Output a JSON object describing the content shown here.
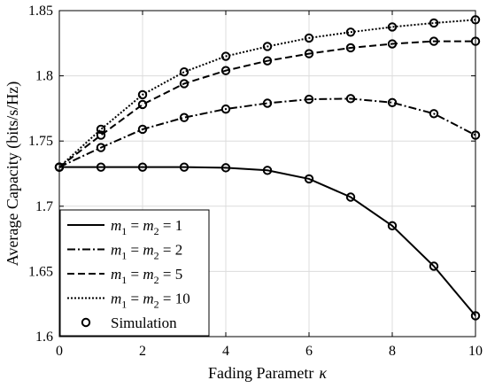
{
  "chart_data": {
    "type": "line",
    "title": "",
    "xlabel": "Fading Parametr",
    "xlabel_symbol": "κ",
    "ylabel": "Average Capacity (bits/s/Hz)",
    "xlim": [
      0,
      10
    ],
    "ylim": [
      1.6,
      1.85
    ],
    "x_ticks": [
      0,
      2,
      4,
      6,
      8,
      10
    ],
    "x_tick_labels": [
      "0",
      "2",
      "4",
      "6",
      "8",
      "10"
    ],
    "y_ticks": [
      1.6,
      1.65,
      1.7,
      1.75,
      1.8,
      1.85
    ],
    "y_tick_labels": [
      "1.6",
      "1.65",
      "1.7",
      "1.75",
      "1.8",
      "1.85"
    ],
    "grid": true,
    "legend_position": "bottom-left",
    "x": [
      0,
      1,
      2,
      3,
      4,
      5,
      6,
      7,
      8,
      9,
      10
    ],
    "series": [
      {
        "id": "m1",
        "m": "1",
        "dash": "solid",
        "values": [
          1.73,
          1.73,
          1.73,
          1.73,
          1.7295,
          1.7275,
          1.721,
          1.707,
          1.685,
          1.654,
          1.616
        ]
      },
      {
        "id": "m2",
        "m": "2",
        "dash": "dashdot",
        "values": [
          1.73,
          1.745,
          1.759,
          1.768,
          1.7745,
          1.779,
          1.782,
          1.7825,
          1.7795,
          1.771,
          1.7545
        ]
      },
      {
        "id": "m5",
        "m": "5",
        "dash": "dashed",
        "values": [
          1.73,
          1.7545,
          1.778,
          1.794,
          1.804,
          1.8115,
          1.817,
          1.8215,
          1.8245,
          1.8265,
          1.8265
        ]
      },
      {
        "id": "m10",
        "m": "10",
        "dash": "dotted",
        "values": [
          1.73,
          1.759,
          1.7855,
          1.803,
          1.815,
          1.8225,
          1.829,
          1.8335,
          1.8375,
          1.8405,
          1.843
        ]
      }
    ],
    "simulation": {
      "label": "Simulation",
      "x": [
        0,
        1,
        2,
        3,
        4,
        5,
        6,
        7,
        8,
        9,
        10
      ]
    },
    "legend_template": {
      "m": "m",
      "sub1": "1",
      "sub2": "2",
      "eq": "="
    }
  }
}
